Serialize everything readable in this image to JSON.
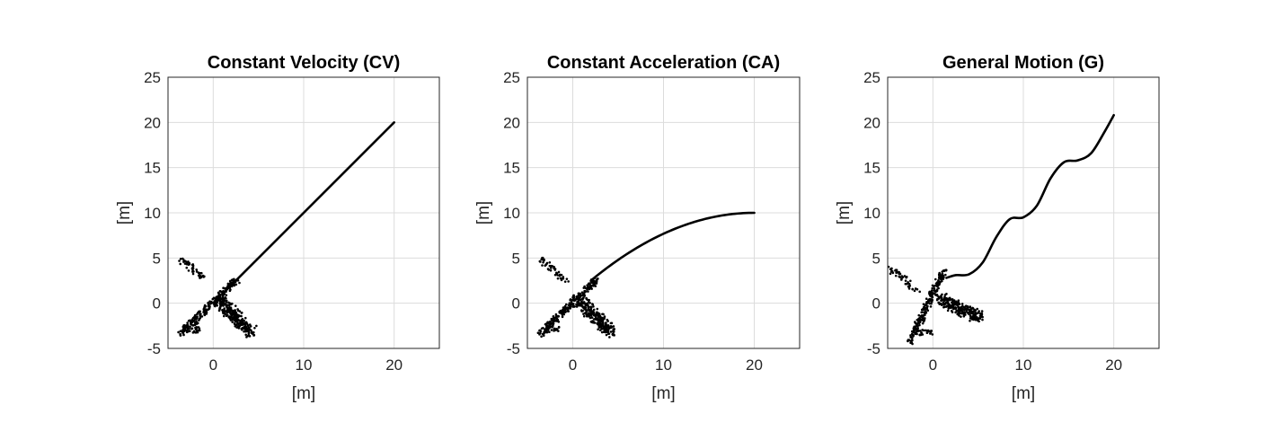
{
  "chart_data": [
    {
      "type": "line",
      "title": "Constant Velocity (CV)",
      "xlabel": "[m]",
      "ylabel": "[m]",
      "xlim": [
        -5,
        25
      ],
      "ylim": [
        -5,
        25
      ],
      "xticks": [
        0,
        10,
        20
      ],
      "yticks": [
        -5,
        0,
        5,
        10,
        15,
        20,
        25
      ],
      "grid": true,
      "motion": "cv",
      "series": [
        {
          "values": [
            [
              1.0,
              1.0
            ],
            [
              20,
              20
            ]
          ]
        }
      ],
      "points": {
        "diagonal": {
          "from": [
            -3.6,
            -3.4
          ],
          "to": [
            2.6,
            2.6
          ]
        },
        "band": {
          "from": [
            0.6,
            0.4
          ],
          "to": [
            4.2,
            -3.2
          ]
        },
        "tail": {
          "from": [
            -3.5,
            4.8
          ],
          "to": [
            -0.6,
            2.4
          ]
        },
        "cluster": {
          "center": [
            -2.3,
            -2.9
          ]
        }
      }
    },
    {
      "type": "line",
      "title": "Constant Acceleration (CA)",
      "xlabel": "[m]",
      "ylabel": "[m]",
      "xlim": [
        -5,
        25
      ],
      "ylim": [
        -5,
        25
      ],
      "xticks": [
        0,
        10,
        20
      ],
      "yticks": [
        -5,
        0,
        5,
        10,
        15,
        20,
        25
      ],
      "grid": true,
      "motion": "ca",
      "series": [
        {
          "values": [
            [
              2.0,
              2.5
            ],
            [
              20,
              10
            ]
          ]
        }
      ],
      "points": {
        "diagonal": {
          "from": [
            -3.6,
            -3.4
          ],
          "to": [
            2.6,
            2.6
          ]
        },
        "band": {
          "from": [
            0.6,
            0.4
          ],
          "to": [
            4.2,
            -3.2
          ]
        },
        "tail": {
          "from": [
            -3.5,
            4.8
          ],
          "to": [
            -0.6,
            2.4
          ]
        },
        "cluster": {
          "center": [
            -2.3,
            -2.9
          ]
        }
      }
    },
    {
      "type": "line",
      "title": "General Motion (G)",
      "xlabel": "[m]",
      "ylabel": "[m]",
      "xlim": [
        -5,
        25
      ],
      "ylim": [
        -5,
        25
      ],
      "xticks": [
        0,
        10,
        20
      ],
      "yticks": [
        -5,
        0,
        5,
        10,
        15,
        20,
        25
      ],
      "grid": true,
      "motion": "g",
      "series": [
        {
          "values": [
            [
              1.5,
              2.8
            ],
            [
              2.5,
              3.1
            ],
            [
              4.0,
              3.2
            ],
            [
              5.5,
              4.5
            ],
            [
              7.0,
              7.3
            ],
            [
              8.5,
              9.3
            ],
            [
              10.0,
              9.5
            ],
            [
              11.5,
              10.8
            ],
            [
              13.0,
              13.8
            ],
            [
              14.5,
              15.6
            ],
            [
              16.0,
              15.8
            ],
            [
              17.5,
              16.6
            ],
            [
              19.0,
              19.0
            ],
            [
              20.0,
              20.8
            ]
          ]
        }
      ],
      "points": {
        "diagonal": {
          "from": [
            -2.6,
            -4.3
          ],
          "to": [
            1.2,
            3.6
          ]
        },
        "band": {
          "from": [
            0.5,
            0.6
          ],
          "to": [
            5.2,
            -1.6
          ]
        },
        "tail": {
          "from": [
            -4.8,
            3.9
          ],
          "to": [
            -1.5,
            1.2
          ]
        },
        "cluster": {
          "center": [
            -0.8,
            -3.3
          ]
        }
      }
    }
  ]
}
